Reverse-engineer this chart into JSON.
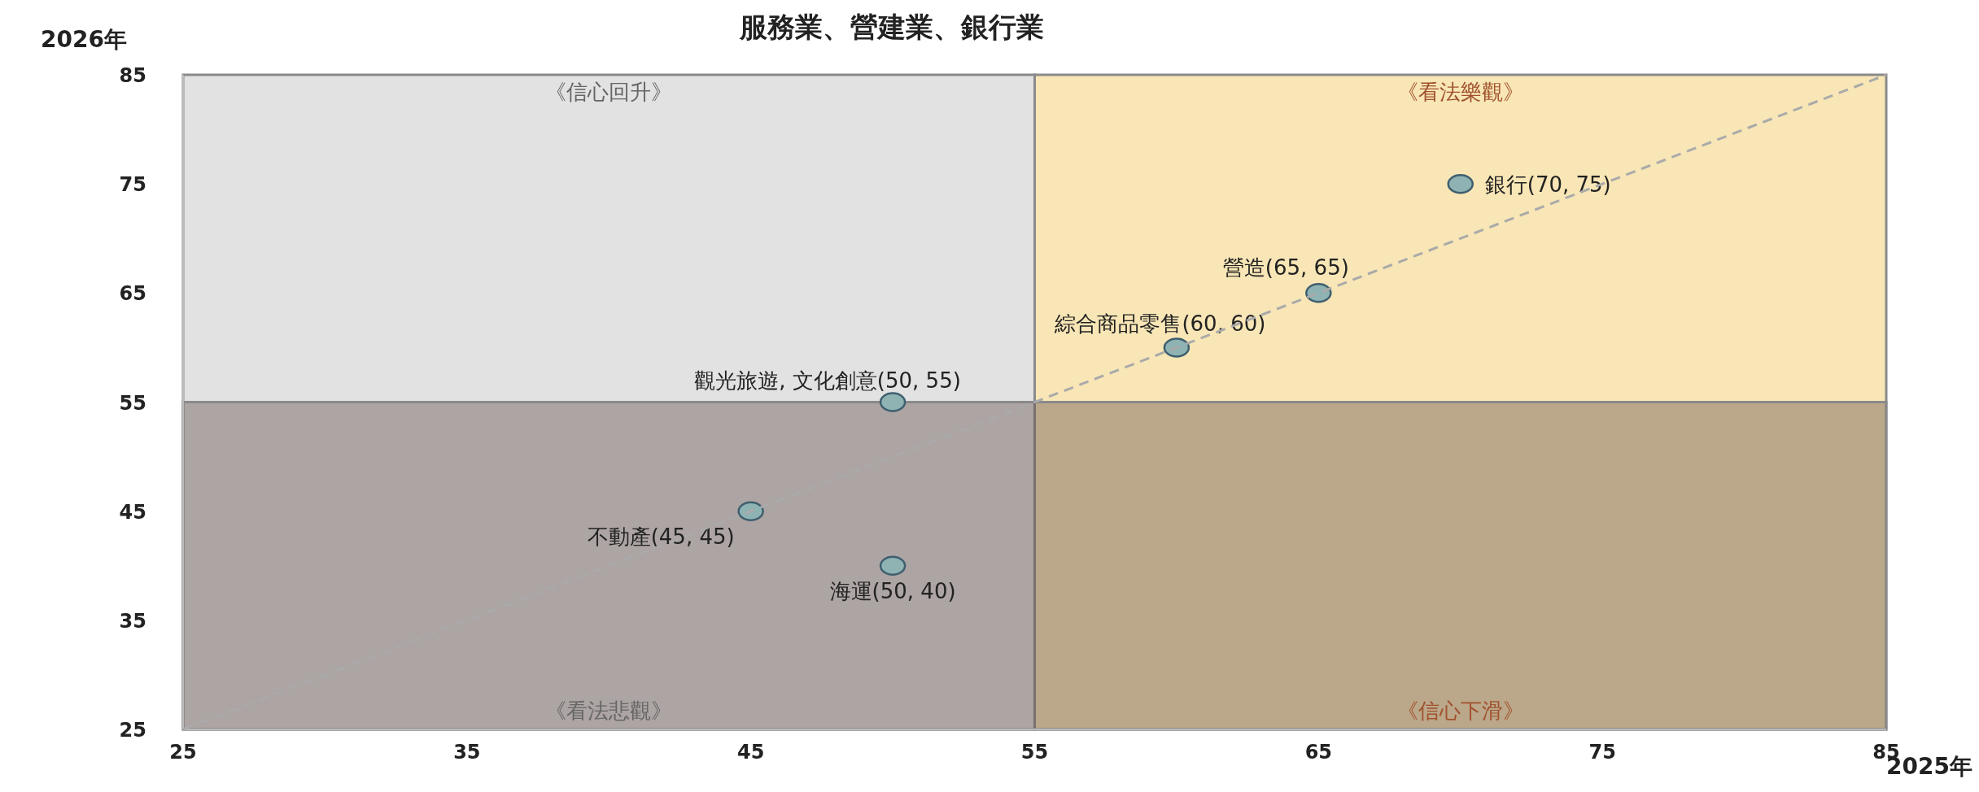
{
  "chart_data": {
    "type": "scatter",
    "title": "服務業、營建業、銀行業",
    "xlabel": "2025年",
    "ylabel": "2026年",
    "xlim": [
      25,
      85
    ],
    "ylim": [
      25,
      85
    ],
    "xticks": [
      25,
      35,
      45,
      55,
      65,
      75,
      85
    ],
    "yticks": [
      25,
      35,
      45,
      55,
      65,
      75,
      85
    ],
    "grid": false,
    "series": [
      {
        "marker": "circle",
        "color": "#8fb3b3",
        "x": [
          70,
          65,
          60,
          50,
          45,
          50
        ],
        "values": [
          75,
          65,
          60,
          55,
          45,
          40
        ],
        "value_labels": [
          "銀行(70, 75)",
          "營造(65, 65)",
          "綜合商品零售(60, 60)",
          "觀光旅遊, 文化創意(50, 55)",
          "不動產(45, 45)",
          "海運(50, 40)"
        ]
      },
      {
        "type": "line",
        "color": "#aaaaaa",
        "line_style": "dashed",
        "x": [
          25,
          85
        ],
        "values": [
          25,
          85
        ]
      }
    ],
    "bands": [
      {
        "axis": "x",
        "from": 25,
        "to": 55,
        "color": "#e2e2e2"
      },
      {
        "axis": "x",
        "from": 55,
        "to": 85,
        "color": "#f8e6b6"
      },
      {
        "axis": "y",
        "from": 25,
        "to": 55,
        "color": "#5e4848"
      }
    ],
    "annotations": [
      "《信心回升》",
      "《看法樂觀》",
      "《看法悲觀》",
      "《信心下滑》"
    ]
  }
}
